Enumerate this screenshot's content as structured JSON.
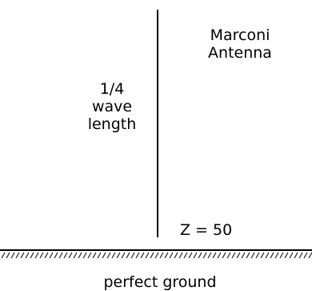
{
  "antenna": {
    "title_line1": "Marconi",
    "title_line2": "Antenna"
  },
  "length_label": {
    "line1": "1/4",
    "line2": "wave",
    "line3": "length"
  },
  "impedance_label": "Z = 50",
  "ground_label": "perfect ground",
  "colors": {
    "ink": "#000000",
    "background": "#ffffff"
  }
}
